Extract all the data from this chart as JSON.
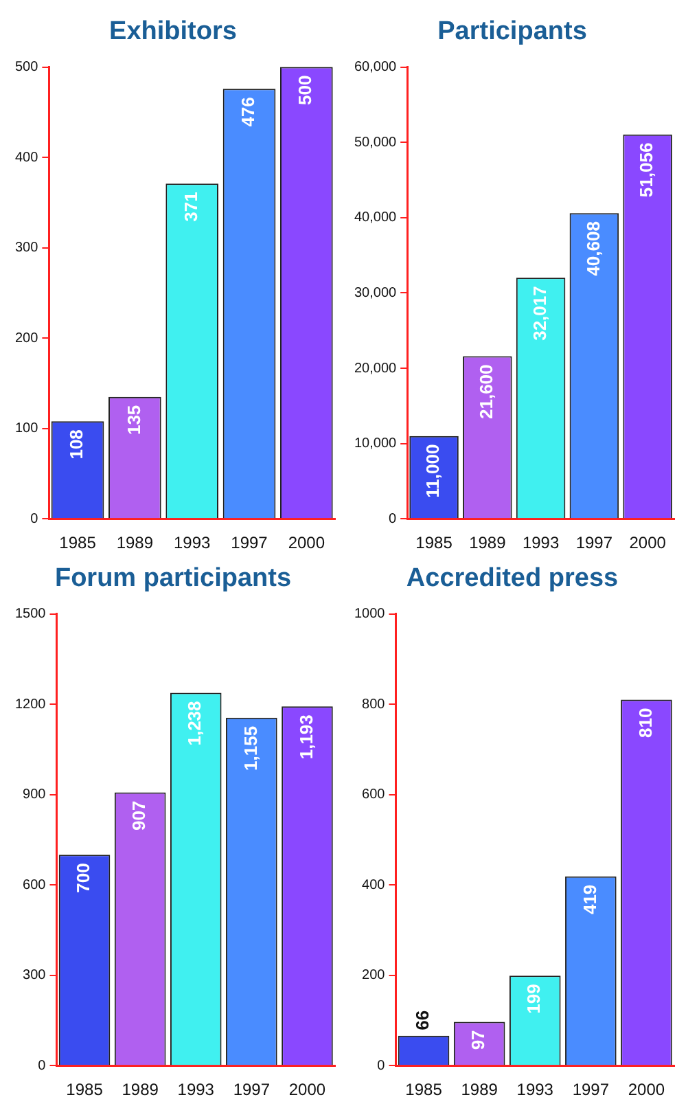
{
  "chart_data": [
    {
      "type": "bar",
      "title": "Exhibitors",
      "categories": [
        "1985",
        "1989",
        "1993",
        "1997",
        "2000"
      ],
      "values": [
        108,
        135,
        371,
        476,
        500
      ],
      "value_labels": [
        "108",
        "135",
        "371",
        "476",
        "500"
      ],
      "colors": [
        "#3a4cf0",
        "#b060f0",
        "#40f0f0",
        "#4a8cff",
        "#8a48ff"
      ],
      "ylim": [
        0,
        500
      ],
      "yticks": [
        0,
        100,
        200,
        300,
        400,
        500
      ]
    },
    {
      "type": "bar",
      "title": "Participants",
      "categories": [
        "1985",
        "1989",
        "1993",
        "1997",
        "2000"
      ],
      "values": [
        11000,
        21600,
        32017,
        40608,
        51056
      ],
      "value_labels": [
        "11,000",
        "21,600",
        "32,017",
        "40,608",
        "51,056"
      ],
      "colors": [
        "#3a4cf0",
        "#b060f0",
        "#40f0f0",
        "#4a8cff",
        "#8a48ff"
      ],
      "ylim": [
        0,
        60000
      ],
      "yticks": [
        0,
        {
          "value": 10000,
          "label": "10,000"
        },
        {
          "value": 20000,
          "label": "20,000"
        },
        {
          "value": 30000,
          "label": "30,000"
        },
        {
          "value": 40000,
          "label": "40,000"
        },
        {
          "value": 50000,
          "label": "50,000"
        },
        {
          "value": 60000,
          "label": "60,000"
        }
      ]
    },
    {
      "type": "bar",
      "title": "Forum participants",
      "categories": [
        "1985",
        "1989",
        "1993",
        "1997",
        "2000"
      ],
      "values": [
        700,
        907,
        1238,
        1155,
        1193
      ],
      "value_labels": [
        "700",
        "907",
        "1,238",
        "1,155",
        "1,193"
      ],
      "colors": [
        "#3a4cf0",
        "#b060f0",
        "#40f0f0",
        "#4a8cff",
        "#8a48ff"
      ],
      "ylim": [
        0,
        1500
      ],
      "yticks": [
        0,
        300,
        600,
        900,
        1200,
        1500
      ]
    },
    {
      "type": "bar",
      "title": "Accredited press",
      "categories": [
        "1985",
        "1989",
        "1993",
        "1997",
        "2000"
      ],
      "values": [
        66,
        97,
        199,
        419,
        810
      ],
      "value_labels": [
        "66",
        "97",
        "199",
        "419",
        "810"
      ],
      "colors": [
        "#3a4cf0",
        "#b060f0",
        "#40f0f0",
        "#4a8cff",
        "#8a48ff"
      ],
      "ylim": [
        0,
        1000
      ],
      "yticks": [
        0,
        200,
        400,
        600,
        800,
        1000
      ]
    }
  ]
}
